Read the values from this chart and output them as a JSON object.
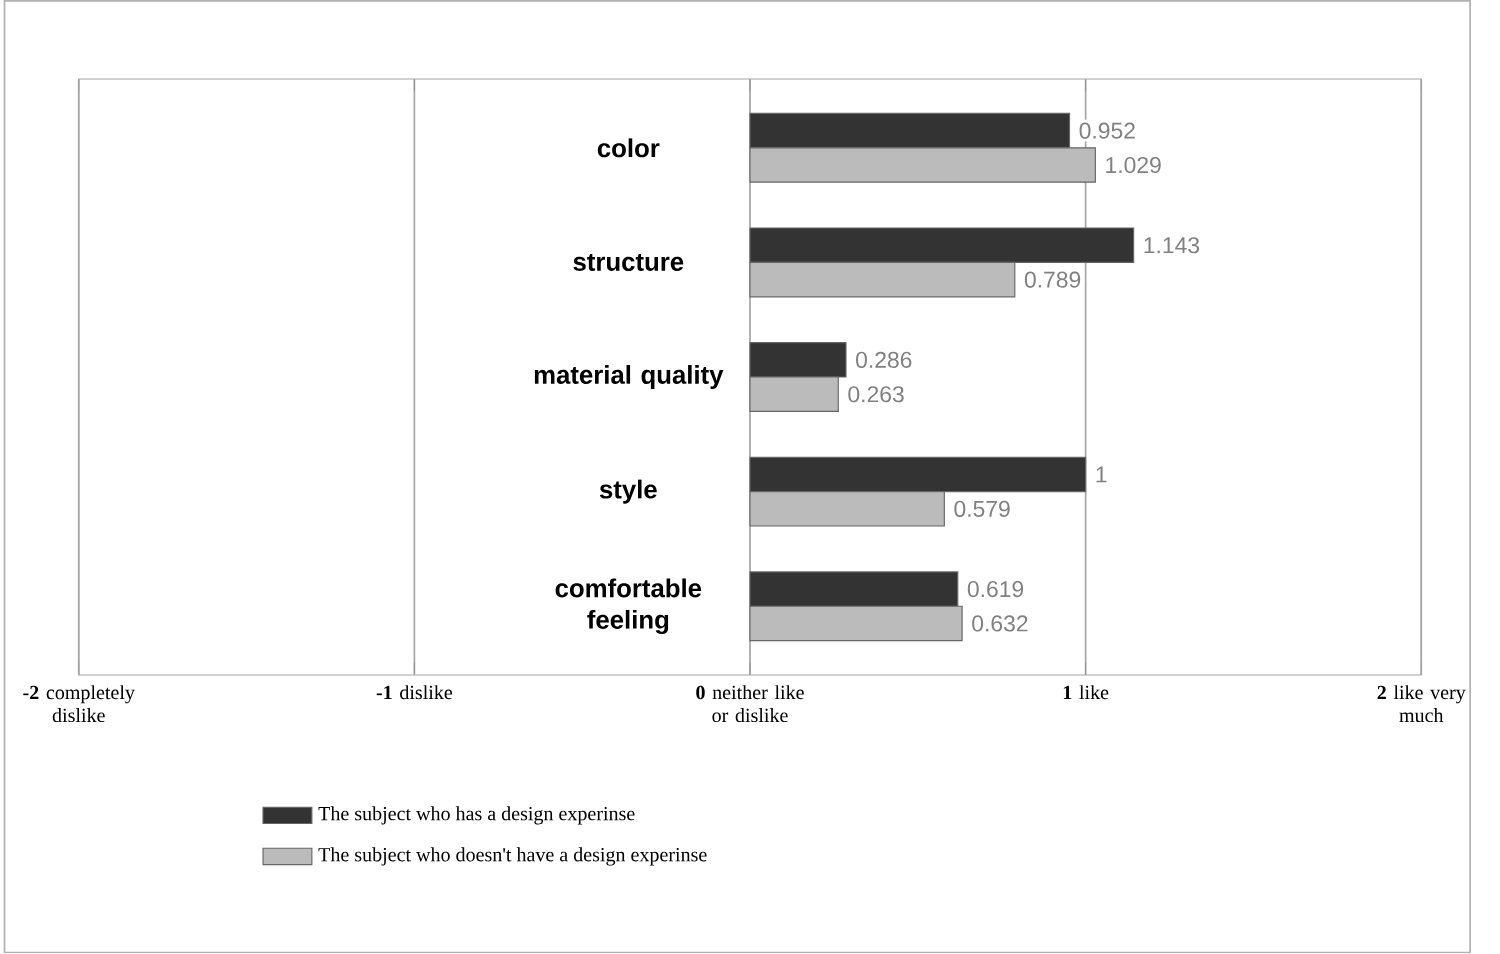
{
  "chart_data": {
    "type": "bar",
    "orientation": "horizontal",
    "categories": [
      "color",
      "structure",
      "material quality",
      "style",
      "comfortable feeling"
    ],
    "series": [
      {
        "name": "The subject who has a design experinse",
        "color": "#333333",
        "values": [
          0.952,
          1.143,
          0.286,
          1,
          0.619
        ]
      },
      {
        "name": "The subject who doesn't have a design experinse",
        "color": "#bbbbbb",
        "values": [
          1.029,
          0.789,
          0.263,
          0.579,
          0.632
        ]
      }
    ],
    "xlim": [
      -2,
      2
    ],
    "xticks": [
      {
        "value": -2,
        "label": "**-2** completely dislike"
      },
      {
        "value": -1,
        "label": "**-1** dislike"
      },
      {
        "value": 0,
        "label": "**0** neither like or dislike"
      },
      {
        "value": 1,
        "label": "**1** like"
      },
      {
        "value": 2,
        "label": "**2** like very much"
      }
    ],
    "grid": "x",
    "data_labels": true,
    "legend": "bottom"
  }
}
